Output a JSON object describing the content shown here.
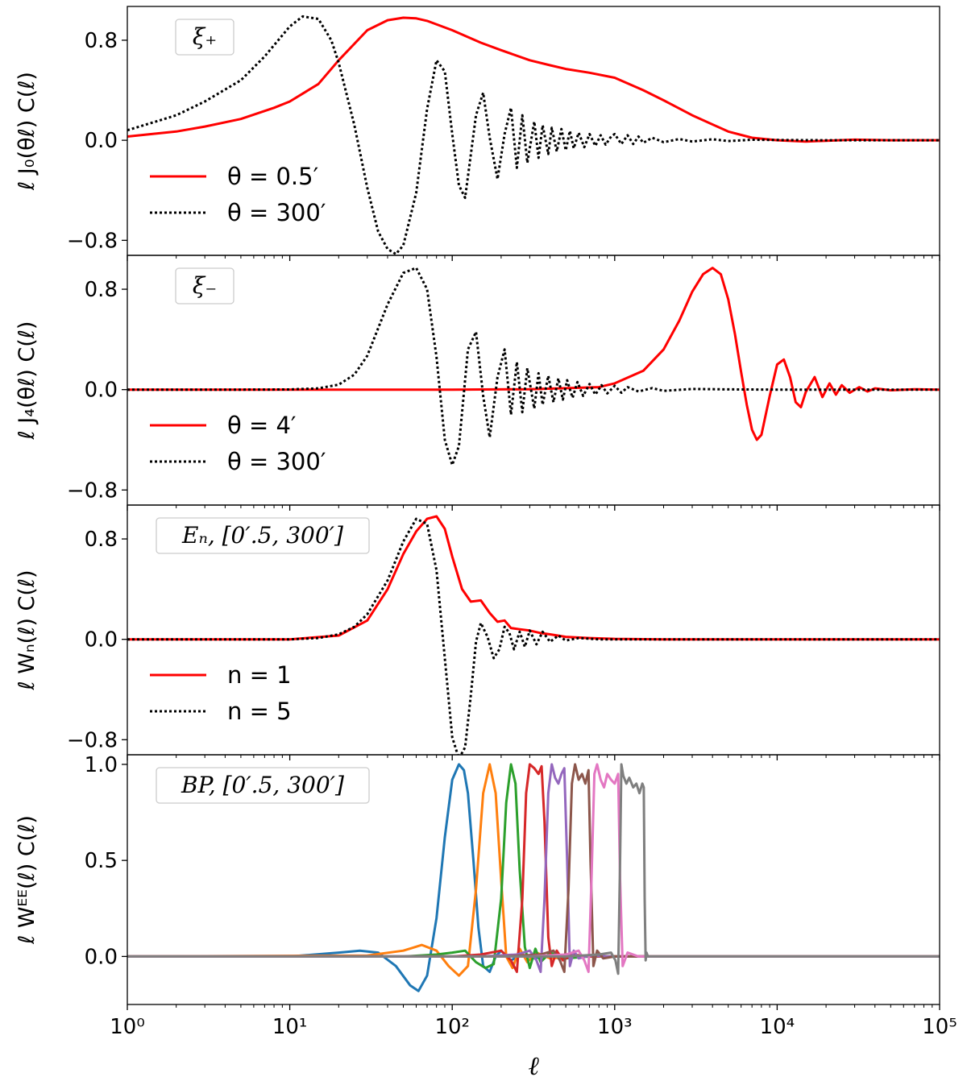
{
  "chart_data": [
    {
      "type": "line",
      "panel_label": "ξ₊",
      "ylabel": "ℓ J₀(θℓ) C(ℓ)",
      "x_scale": "log",
      "xlim": [
        1,
        100000
      ],
      "ylim": [
        -0.92,
        1.07
      ],
      "yticks": [
        -0.8,
        0.0,
        0.8
      ],
      "ytick_labels": [
        "−0.8",
        "0.0",
        "0.8"
      ],
      "series": [
        {
          "name": "θ = 0.5′",
          "color": "#ff0000",
          "style": "solid",
          "x": [
            1,
            2,
            3,
            5,
            8,
            10,
            15,
            20,
            30,
            40,
            50,
            60,
            70,
            100,
            150,
            200,
            300,
            400,
            500,
            700,
            1000,
            1500,
            2000,
            3000,
            5000,
            7000,
            10000,
            15000,
            30000,
            50000,
            100000
          ],
          "y": [
            0.03,
            0.07,
            0.11,
            0.17,
            0.26,
            0.31,
            0.45,
            0.64,
            0.88,
            0.96,
            0.98,
            0.975,
            0.955,
            0.88,
            0.78,
            0.72,
            0.64,
            0.6,
            0.57,
            0.54,
            0.5,
            0.4,
            0.32,
            0.2,
            0.07,
            0.02,
            0.0,
            -0.01,
            0.005,
            0.0,
            0.0
          ]
        },
        {
          "name": "θ = 300′",
          "color": "#000000",
          "style": "dotted",
          "x": [
            1,
            2,
            3,
            5,
            7,
            10,
            12,
            15,
            18,
            20,
            25,
            30,
            35,
            40,
            45,
            50,
            60,
            70,
            80,
            90,
            100,
            110,
            120,
            140,
            155,
            170,
            190,
            210,
            230,
            250,
            270,
            290,
            320,
            340,
            360,
            390,
            410,
            440,
            470,
            500,
            530,
            560,
            600,
            650,
            700,
            760,
            820,
            880,
            950,
            1000,
            1100,
            1200,
            1300,
            1400,
            1500,
            1700,
            2000,
            2500,
            3000,
            4000,
            5000,
            7000,
            10000,
            20000,
            50000,
            100000
          ],
          "y": [
            0.08,
            0.2,
            0.31,
            0.48,
            0.67,
            0.91,
            0.99,
            0.97,
            0.8,
            0.62,
            0.12,
            -0.38,
            -0.73,
            -0.87,
            -0.91,
            -0.84,
            -0.42,
            0.25,
            0.64,
            0.55,
            0.05,
            -0.36,
            -0.46,
            0.2,
            0.38,
            0.02,
            -0.31,
            0.05,
            0.26,
            -0.22,
            0.2,
            -0.18,
            0.15,
            -0.14,
            0.12,
            -0.11,
            0.1,
            -0.09,
            0.09,
            -0.08,
            0.075,
            -0.065,
            0.06,
            -0.055,
            0.05,
            -0.045,
            0.04,
            -0.035,
            0.03,
            0.05,
            -0.03,
            0.04,
            -0.03,
            0.03,
            -0.02,
            0.02,
            -0.015,
            0.01,
            -0.01,
            0.008,
            -0.006,
            0.004,
            0.002,
            0.0,
            0.0,
            0.0
          ]
        }
      ]
    },
    {
      "type": "line",
      "panel_label": "ξ₋",
      "ylabel": "ℓ J₄(θℓ) C(ℓ)",
      "x_scale": "log",
      "xlim": [
        1,
        100000
      ],
      "ylim": [
        -0.92,
        1.07
      ],
      "yticks": [
        -0.8,
        0.0,
        0.8
      ],
      "ytick_labels": [
        "−0.8",
        "0.0",
        "0.8"
      ],
      "series": [
        {
          "name": "θ = 4′",
          "color": "#ff0000",
          "style": "solid",
          "x": [
            1,
            100,
            300,
            800,
            1000,
            1500,
            2000,
            2500,
            3000,
            3500,
            4000,
            4500,
            5000,
            5500,
            6000,
            6500,
            7000,
            7500,
            8000,
            9000,
            10000,
            11000,
            12000,
            13000,
            14000,
            15000,
            17000,
            19000,
            21000,
            23000,
            25000,
            28000,
            32000,
            36000,
            40000,
            50000,
            70000,
            100000
          ],
          "y": [
            0.0,
            0.0,
            0.003,
            0.02,
            0.05,
            0.15,
            0.32,
            0.55,
            0.78,
            0.92,
            0.97,
            0.92,
            0.72,
            0.44,
            0.14,
            -0.12,
            -0.32,
            -0.4,
            -0.36,
            -0.05,
            0.2,
            0.24,
            0.1,
            -0.1,
            -0.14,
            -0.02,
            0.1,
            -0.06,
            0.05,
            -0.04,
            0.035,
            -0.025,
            0.02,
            -0.015,
            0.01,
            -0.005,
            0.003,
            0.0
          ]
        },
        {
          "name": "θ = 300′",
          "color": "#000000",
          "style": "dotted",
          "x": [
            1,
            5,
            10,
            15,
            20,
            25,
            30,
            40,
            50,
            60,
            70,
            80,
            90,
            100,
            110,
            125,
            140,
            155,
            170,
            190,
            210,
            230,
            250,
            270,
            290,
            320,
            340,
            360,
            390,
            420,
            450,
            480,
            510,
            550,
            590,
            640,
            700,
            760,
            830,
            900,
            1000,
            1100,
            1200,
            1400,
            1700,
            2000,
            3000,
            5000,
            10000,
            100000
          ],
          "y": [
            0.0,
            0.0,
            0.001,
            0.01,
            0.04,
            0.12,
            0.27,
            0.68,
            0.93,
            0.97,
            0.8,
            0.26,
            -0.4,
            -0.6,
            -0.45,
            0.32,
            0.46,
            -0.05,
            -0.38,
            0.1,
            0.32,
            -0.2,
            0.22,
            -0.18,
            0.17,
            -0.15,
            0.13,
            -0.12,
            0.11,
            -0.1,
            0.09,
            -0.08,
            0.075,
            -0.065,
            0.06,
            -0.05,
            0.045,
            -0.04,
            0.035,
            -0.03,
            0.03,
            -0.025,
            0.02,
            -0.015,
            0.012,
            -0.01,
            0.005,
            0.002,
            0.0,
            0.0
          ]
        }
      ]
    },
    {
      "type": "line",
      "panel_label": "Eₙ, [0′.5, 300′]",
      "ylabel": "ℓ Wₙ(ℓ) C(ℓ)",
      "x_scale": "log",
      "xlim": [
        1,
        100000
      ],
      "ylim": [
        -0.92,
        1.07
      ],
      "yticks": [
        -0.8,
        0.0,
        0.8
      ],
      "ytick_labels": [
        "−0.8",
        "0.0",
        "0.8"
      ],
      "series": [
        {
          "name": "n = 1",
          "color": "#ff0000",
          "style": "solid",
          "x": [
            1,
            10,
            20,
            30,
            40,
            50,
            60,
            70,
            80,
            90,
            100,
            115,
            130,
            150,
            170,
            190,
            210,
            230,
            260,
            300,
            350,
            400,
            500,
            700,
            1000,
            2000,
            100000
          ],
          "y": [
            0.0,
            0.0,
            0.03,
            0.15,
            0.4,
            0.68,
            0.86,
            0.96,
            0.98,
            0.88,
            0.66,
            0.4,
            0.3,
            0.31,
            0.21,
            0.14,
            0.15,
            0.09,
            0.08,
            0.07,
            0.05,
            0.04,
            0.02,
            0.01,
            0.004,
            0.0,
            0.0
          ]
        },
        {
          "name": "n = 5",
          "color": "#000000",
          "style": "dotted",
          "x": [
            1,
            10,
            15,
            20,
            25,
            30,
            40,
            50,
            60,
            70,
            80,
            90,
            100,
            110,
            120,
            130,
            140,
            150,
            165,
            180,
            195,
            210,
            225,
            240,
            260,
            280,
            300,
            330,
            360,
            400,
            450,
            500,
            600,
            800,
            1000,
            2000,
            100000
          ],
          "y": [
            0.0,
            0.0,
            0.01,
            0.04,
            0.1,
            0.2,
            0.47,
            0.78,
            0.96,
            0.92,
            0.55,
            -0.15,
            -0.78,
            -0.95,
            -0.86,
            -0.45,
            -0.02,
            0.13,
            0.02,
            -0.15,
            -0.08,
            0.1,
            0.05,
            -0.08,
            0.06,
            -0.06,
            0.07,
            -0.04,
            0.06,
            -0.02,
            0.03,
            -0.01,
            0.01,
            0.0,
            0.0,
            0.0,
            0.0
          ]
        }
      ]
    },
    {
      "type": "line",
      "panel_label": "BP, [0′.5, 300′]",
      "ylabel": "ℓ Wᴱᴱ(ℓ) C(ℓ)",
      "x_scale": "log",
      "xlim": [
        1,
        100000
      ],
      "ylim": [
        -0.25,
        1.05
      ],
      "yticks": [
        0.0,
        0.5,
        1.0
      ],
      "ytick_labels": [
        "0.0",
        "0.5",
        "1.0"
      ],
      "xticks": [
        1,
        10,
        100,
        1000,
        10000,
        100000
      ],
      "xtick_labels": [
        "10⁰",
        "10¹",
        "10²",
        "10³",
        "10⁴",
        "10⁵"
      ],
      "xlabel": "ℓ",
      "series": [
        {
          "color": "#1f77b4",
          "x": [
            1,
            10,
            20,
            27,
            35,
            45,
            55,
            62,
            70,
            80,
            90,
            100,
            110,
            118,
            125,
            135,
            145,
            155,
            170,
            185,
            200,
            230,
            270,
            320,
            400,
            600,
            1000,
            3000,
            100000
          ],
          "y": [
            0.0,
            0.0,
            0.02,
            0.03,
            0.02,
            -0.05,
            -0.15,
            -0.18,
            -0.1,
            0.2,
            0.62,
            0.92,
            1.0,
            0.97,
            0.85,
            0.5,
            0.15,
            -0.05,
            -0.08,
            0.0,
            0.03,
            -0.02,
            0.01,
            -0.01,
            0.005,
            0.0,
            0.0,
            0.0,
            0.0
          ]
        },
        {
          "color": "#ff7f0e",
          "x": [
            1,
            30,
            50,
            65,
            80,
            95,
            110,
            125,
            140,
            155,
            170,
            185,
            200,
            215,
            235,
            260,
            290,
            330,
            400,
            600,
            1000,
            100000
          ],
          "y": [
            0.0,
            0.005,
            0.03,
            0.06,
            0.03,
            -0.05,
            -0.1,
            -0.05,
            0.35,
            0.85,
            1.0,
            0.85,
            0.4,
            0.0,
            -0.06,
            0.04,
            -0.03,
            0.02,
            -0.01,
            0.0,
            0.0,
            0.0
          ]
        },
        {
          "color": "#2ca02c",
          "x": [
            1,
            50,
            80,
            100,
            120,
            140,
            160,
            180,
            200,
            215,
            230,
            245,
            260,
            280,
            300,
            325,
            350,
            400,
            500,
            700,
            1000,
            100000
          ],
          "y": [
            0.0,
            0.0,
            0.01,
            0.02,
            0.03,
            -0.03,
            -0.06,
            -0.04,
            0.3,
            0.8,
            1.0,
            0.9,
            0.45,
            0.05,
            -0.06,
            0.04,
            -0.03,
            0.02,
            -0.01,
            0.0,
            0.0,
            0.0
          ]
        },
        {
          "color": "#d62728",
          "x": [
            1,
            100,
            150,
            200,
            230,
            250,
            270,
            285,
            300,
            320,
            340,
            355,
            370,
            390,
            410,
            440,
            480,
            550,
            700,
            1000,
            100000
          ],
          "y": [
            0.0,
            0.0,
            0.01,
            0.03,
            -0.02,
            -0.08,
            0.3,
            0.85,
            1.0,
            0.98,
            0.95,
            0.99,
            0.7,
            0.1,
            -0.05,
            0.03,
            -0.02,
            0.01,
            0.0,
            0.0,
            0.0
          ]
        },
        {
          "color": "#9467bd",
          "x": [
            1,
            150,
            250,
            300,
            330,
            350,
            370,
            390,
            410,
            430,
            450,
            470,
            490,
            510,
            530,
            560,
            600,
            700,
            900,
            100000
          ],
          "y": [
            0.0,
            0.0,
            0.01,
            0.03,
            -0.02,
            -0.08,
            0.3,
            0.85,
            1.0,
            0.93,
            0.9,
            0.95,
            0.98,
            0.5,
            -0.05,
            0.03,
            -0.01,
            0.005,
            0.0,
            0.0
          ]
        },
        {
          "color": "#8c564b",
          "x": [
            1,
            200,
            350,
            420,
            460,
            490,
            520,
            545,
            570,
            600,
            630,
            660,
            690,
            710,
            740,
            780,
            850,
            1000,
            100000
          ],
          "y": [
            0.0,
            0.0,
            0.01,
            0.03,
            -0.02,
            -0.08,
            0.35,
            0.9,
            1.0,
            0.92,
            0.95,
            0.9,
            0.97,
            0.5,
            -0.05,
            0.03,
            -0.01,
            0.0,
            0.0
          ]
        },
        {
          "color": "#e377c2",
          "x": [
            1,
            300,
            500,
            600,
            650,
            690,
            720,
            750,
            780,
            820,
            860,
            900,
            950,
            1000,
            1050,
            1080,
            1120,
            1200,
            1400,
            100000
          ],
          "y": [
            0.0,
            0.0,
            0.01,
            0.03,
            -0.02,
            -0.08,
            0.4,
            0.95,
            1.0,
            0.92,
            0.88,
            0.95,
            0.92,
            0.9,
            0.95,
            0.4,
            -0.05,
            0.02,
            0.0,
            0.0
          ]
        },
        {
          "color": "#7f7f7f",
          "x": [
            1,
            500,
            800,
            950,
            1010,
            1050,
            1080,
            1100,
            1130,
            1180,
            1230,
            1300,
            1360,
            1420,
            1480,
            1510,
            1530,
            1550,
            1570,
            1600,
            1700,
            3000,
            100000
          ],
          "y": [
            0.0,
            0.0,
            0.01,
            0.02,
            -0.02,
            -0.09,
            0.5,
            1.0,
            0.94,
            0.9,
            0.93,
            0.88,
            0.9,
            0.85,
            0.9,
            0.88,
            0.3,
            -0.02,
            0.02,
            0.0,
            0.0,
            0.0,
            0.0
          ]
        }
      ]
    }
  ]
}
